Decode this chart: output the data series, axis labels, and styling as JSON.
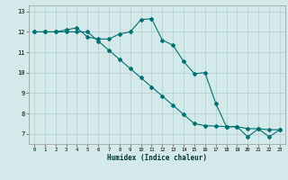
{
  "xlabel": "Humidex (Indice chaleur)",
  "background_color": "#d4eaea",
  "grid_color": "#b0cccc",
  "line_color": "#007070",
  "xlim": [
    -0.5,
    23.5
  ],
  "ylim": [
    6.5,
    13.3
  ],
  "yticks": [
    7,
    8,
    9,
    10,
    11,
    12,
    13
  ],
  "xticks": [
    0,
    1,
    2,
    3,
    4,
    5,
    6,
    7,
    8,
    9,
    10,
    11,
    12,
    13,
    14,
    15,
    16,
    17,
    18,
    19,
    20,
    21,
    22,
    23
  ],
  "line1_x": [
    0,
    1,
    2,
    3,
    4,
    5,
    6,
    7,
    8,
    9,
    10,
    11,
    12,
    13,
    14,
    15,
    16,
    17,
    18,
    19,
    20,
    21,
    22,
    23
  ],
  "line1_y": [
    12.0,
    12.0,
    12.0,
    12.1,
    12.2,
    11.75,
    11.65,
    11.65,
    11.9,
    12.0,
    12.6,
    12.65,
    11.6,
    11.35,
    10.55,
    9.95,
    10.0,
    8.5,
    7.35,
    7.35,
    7.25,
    7.25,
    7.2,
    7.2
  ],
  "line2_x": [
    0,
    1,
    2,
    3,
    4,
    5,
    6,
    7,
    8,
    9,
    10,
    11,
    12,
    13,
    14,
    15,
    16,
    17,
    18,
    19,
    20,
    21,
    22,
    23
  ],
  "line2_y": [
    12.0,
    12.0,
    12.0,
    12.0,
    12.0,
    12.0,
    11.55,
    11.1,
    10.65,
    10.2,
    9.75,
    9.3,
    8.85,
    8.4,
    7.95,
    7.5,
    7.4,
    7.38,
    7.35,
    7.35,
    6.85,
    7.25,
    6.85,
    7.2
  ]
}
